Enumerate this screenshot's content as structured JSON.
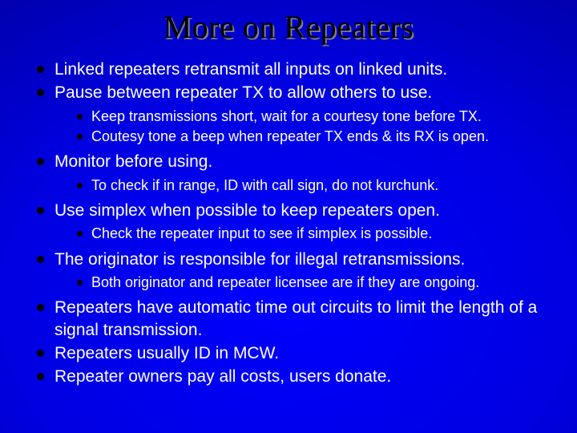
{
  "colors": {
    "title_color": "#000000",
    "title_shadow": "#808080",
    "body_text": "#ffffff",
    "bullet_color": "#000000",
    "bg_center": "#0000ff",
    "bg_edge": "#000070"
  },
  "typography": {
    "title_font": "Times New Roman",
    "title_size_pt": 30,
    "body_font": "Arial",
    "lvl1_size_pt": 16,
    "lvl2_size_pt": 14
  },
  "title": "More on Repeaters",
  "bullets": [
    {
      "text": "Linked repeaters retransmit all inputs on linked units.",
      "sub": []
    },
    {
      "text": "Pause between repeater TX to allow others to use.",
      "sub": [
        "Keep transmissions short, wait for a courtesy tone before TX.",
        "Coutesy tone a beep when repeater TX ends & its RX is open."
      ]
    },
    {
      "text": "Monitor before using.",
      "sub": [
        "To check if in range, ID with call sign, do not kurchunk."
      ]
    },
    {
      "text": "Use simplex when possible to keep repeaters open.",
      "sub": [
        "Check the repeater input to see if simplex is possible."
      ]
    },
    {
      "text": "The originator is responsible for illegal retransmissions.",
      "sub": [
        "Both originator and repeater licensee are if they are ongoing."
      ]
    },
    {
      "text": "Repeaters have automatic time out circuits to limit the length of a signal transmission.",
      "sub": []
    },
    {
      "text": "Repeaters usually ID in MCW.",
      "sub": []
    },
    {
      "text": "Repeater owners pay all costs, users donate.",
      "sub": []
    }
  ]
}
